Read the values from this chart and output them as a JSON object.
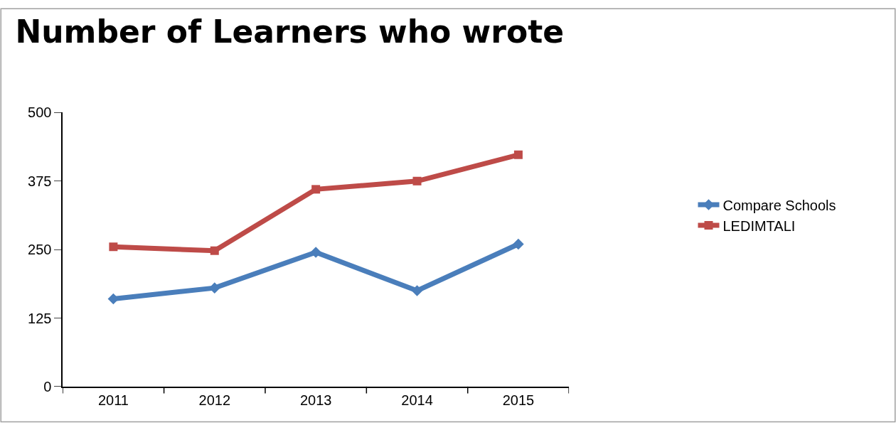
{
  "chart_data": {
    "type": "line",
    "title": "Number of Learners who wrote",
    "categories": [
      "2011",
      "2012",
      "2013",
      "2014",
      "2015"
    ],
    "series": [
      {
        "name": "Compare Schools",
        "color": "#4a7ebb",
        "marker": "diamond",
        "values": [
          160,
          180,
          245,
          175,
          260
        ]
      },
      {
        "name": "LEDIMTALI",
        "color": "#be4b48",
        "marker": "square",
        "values": [
          255,
          248,
          360,
          375,
          423
        ]
      }
    ],
    "ylim": [
      0,
      500
    ],
    "yticks": [
      0,
      125,
      250,
      375,
      500
    ],
    "legend": "right",
    "line_style": "solid"
  }
}
